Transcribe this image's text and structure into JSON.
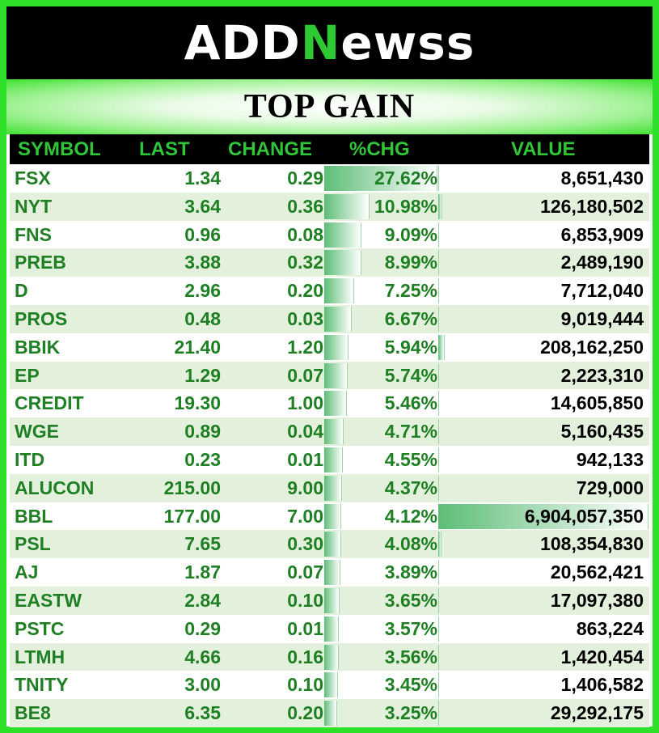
{
  "logo": {
    "part1": "ADD",
    "part2": "N",
    "part3": "ewss"
  },
  "title": "TOP GAIN",
  "headers": {
    "symbol": "SYMBOL",
    "last": "LAST",
    "change": "CHANGE",
    "pct": "%CHG",
    "value": "VALUE"
  },
  "colors": {
    "background": "#2fe02a",
    "header_text": "#2fc537",
    "row_text": "#1e7f23",
    "row_alt": "#e3f1dc",
    "bar": "#5dbd77"
  },
  "rows": [
    {
      "symbol": "FSX",
      "last": "1.34",
      "change": "0.29",
      "pct": "27.62%",
      "value": "8,651,430",
      "pct_num": 27.62,
      "value_num": 8651430
    },
    {
      "symbol": "NYT",
      "last": "3.64",
      "change": "0.36",
      "pct": "10.98%",
      "value": "126,180,502",
      "pct_num": 10.98,
      "value_num": 126180502
    },
    {
      "symbol": "FNS",
      "last": "0.96",
      "change": "0.08",
      "pct": "9.09%",
      "value": "6,853,909",
      "pct_num": 9.09,
      "value_num": 6853909
    },
    {
      "symbol": "PREB",
      "last": "3.88",
      "change": "0.32",
      "pct": "8.99%",
      "value": "2,489,190",
      "pct_num": 8.99,
      "value_num": 2489190
    },
    {
      "symbol": "D",
      "last": "2.96",
      "change": "0.20",
      "pct": "7.25%",
      "value": "7,712,040",
      "pct_num": 7.25,
      "value_num": 7712040
    },
    {
      "symbol": "PROS",
      "last": "0.48",
      "change": "0.03",
      "pct": "6.67%",
      "value": "9,019,444",
      "pct_num": 6.67,
      "value_num": 9019444
    },
    {
      "symbol": "BBIK",
      "last": "21.40",
      "change": "1.20",
      "pct": "5.94%",
      "value": "208,162,250",
      "pct_num": 5.94,
      "value_num": 208162250
    },
    {
      "symbol": "EP",
      "last": "1.29",
      "change": "0.07",
      "pct": "5.74%",
      "value": "2,223,310",
      "pct_num": 5.74,
      "value_num": 2223310
    },
    {
      "symbol": "CREDIT",
      "last": "19.30",
      "change": "1.00",
      "pct": "5.46%",
      "value": "14,605,850",
      "pct_num": 5.46,
      "value_num": 14605850
    },
    {
      "symbol": "WGE",
      "last": "0.89",
      "change": "0.04",
      "pct": "4.71%",
      "value": "5,160,435",
      "pct_num": 4.71,
      "value_num": 5160435
    },
    {
      "symbol": "ITD",
      "last": "0.23",
      "change": "0.01",
      "pct": "4.55%",
      "value": "942,133",
      "pct_num": 4.55,
      "value_num": 942133
    },
    {
      "symbol": "ALUCON",
      "last": "215.00",
      "change": "9.00",
      "pct": "4.37%",
      "value": "729,000",
      "pct_num": 4.37,
      "value_num": 729000
    },
    {
      "symbol": "BBL",
      "last": "177.00",
      "change": "7.00",
      "pct": "4.12%",
      "value": "6,904,057,350",
      "pct_num": 4.12,
      "value_num": 6904057350
    },
    {
      "symbol": "PSL",
      "last": "7.65",
      "change": "0.30",
      "pct": "4.08%",
      "value": "108,354,830",
      "pct_num": 4.08,
      "value_num": 108354830
    },
    {
      "symbol": "AJ",
      "last": "1.87",
      "change": "0.07",
      "pct": "3.89%",
      "value": "20,562,421",
      "pct_num": 3.89,
      "value_num": 20562421
    },
    {
      "symbol": "EASTW",
      "last": "2.84",
      "change": "0.10",
      "pct": "3.65%",
      "value": "17,097,380",
      "pct_num": 3.65,
      "value_num": 17097380
    },
    {
      "symbol": "PSTC",
      "last": "0.29",
      "change": "0.01",
      "pct": "3.57%",
      "value": "863,224",
      "pct_num": 3.57,
      "value_num": 863224
    },
    {
      "symbol": "LTMH",
      "last": "4.66",
      "change": "0.16",
      "pct": "3.56%",
      "value": "1,420,454",
      "pct_num": 3.56,
      "value_num": 1420454
    },
    {
      "symbol": "TNITY",
      "last": "3.00",
      "change": "0.10",
      "pct": "3.45%",
      "value": "1,406,582",
      "pct_num": 3.45,
      "value_num": 1406582
    },
    {
      "symbol": "BE8",
      "last": "6.35",
      "change": "0.20",
      "pct": "3.25%",
      "value": "29,292,175",
      "pct_num": 3.25,
      "value_num": 29292175
    }
  ]
}
